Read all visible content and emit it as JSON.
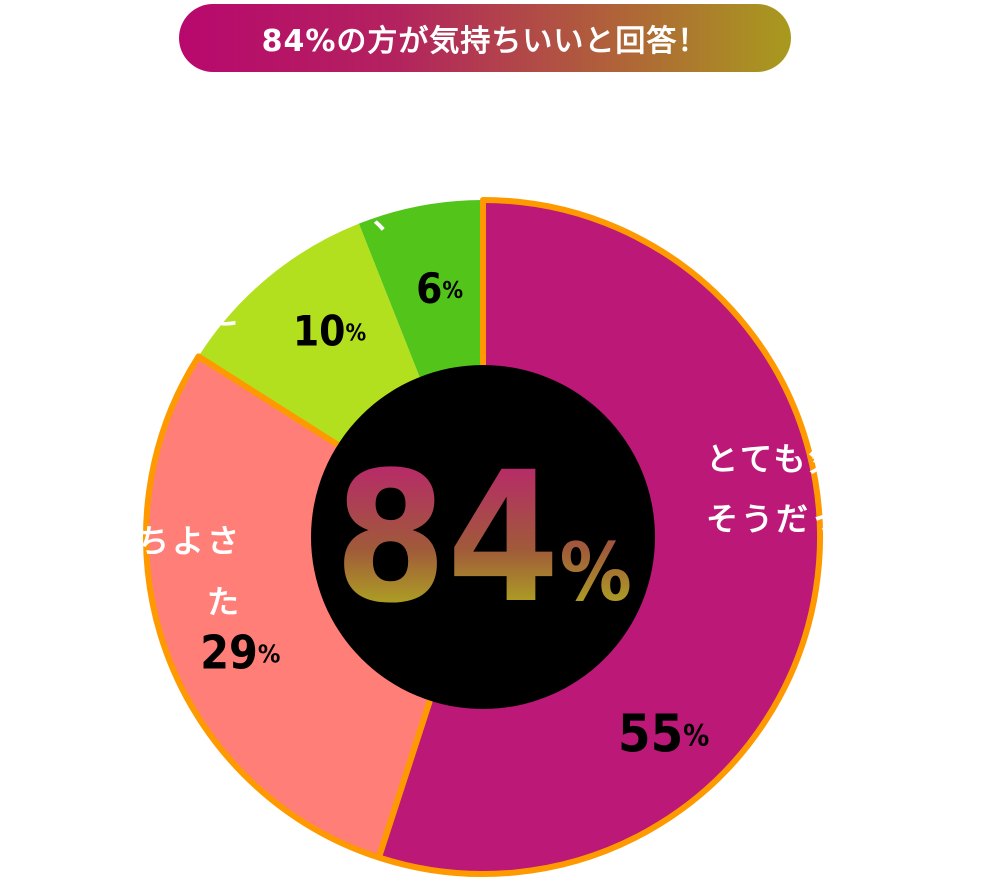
{
  "banner": {
    "text": "84%の方が気持ちいいと回答！"
  },
  "center": {
    "value": "84",
    "unit": "%"
  },
  "colors": {
    "banner_start": "#b8086e",
    "banner_end": "#a89a1e",
    "highlight_border": "#ff9900",
    "center_bg": "#000000"
  },
  "chart_data": {
    "type": "pie",
    "variant": "donut",
    "center_value": 84,
    "slices": [
      {
        "label": "とても気持ちよさそうだった",
        "visible_label_lines": [
          "とても気",
          "そうだっ"
        ],
        "value": 55,
        "display": "55",
        "color": "#bb1877",
        "highlight": true
      },
      {
        "label": "気持ちよさそうだった",
        "visible_label_lines": [
          "ちよさ",
          "た"
        ],
        "value": 29,
        "display": "29",
        "color": "#ff7f78",
        "highlight": true
      },
      {
        "label": "",
        "visible_label_lines": [
          "と"
        ],
        "value": 10,
        "display": "10",
        "color": "#b2e01e",
        "highlight": false
      },
      {
        "label": "",
        "visible_label_lines": [
          "、"
        ],
        "value": 6,
        "display": "6",
        "color": "#52c41a",
        "highlight": false
      }
    ]
  }
}
